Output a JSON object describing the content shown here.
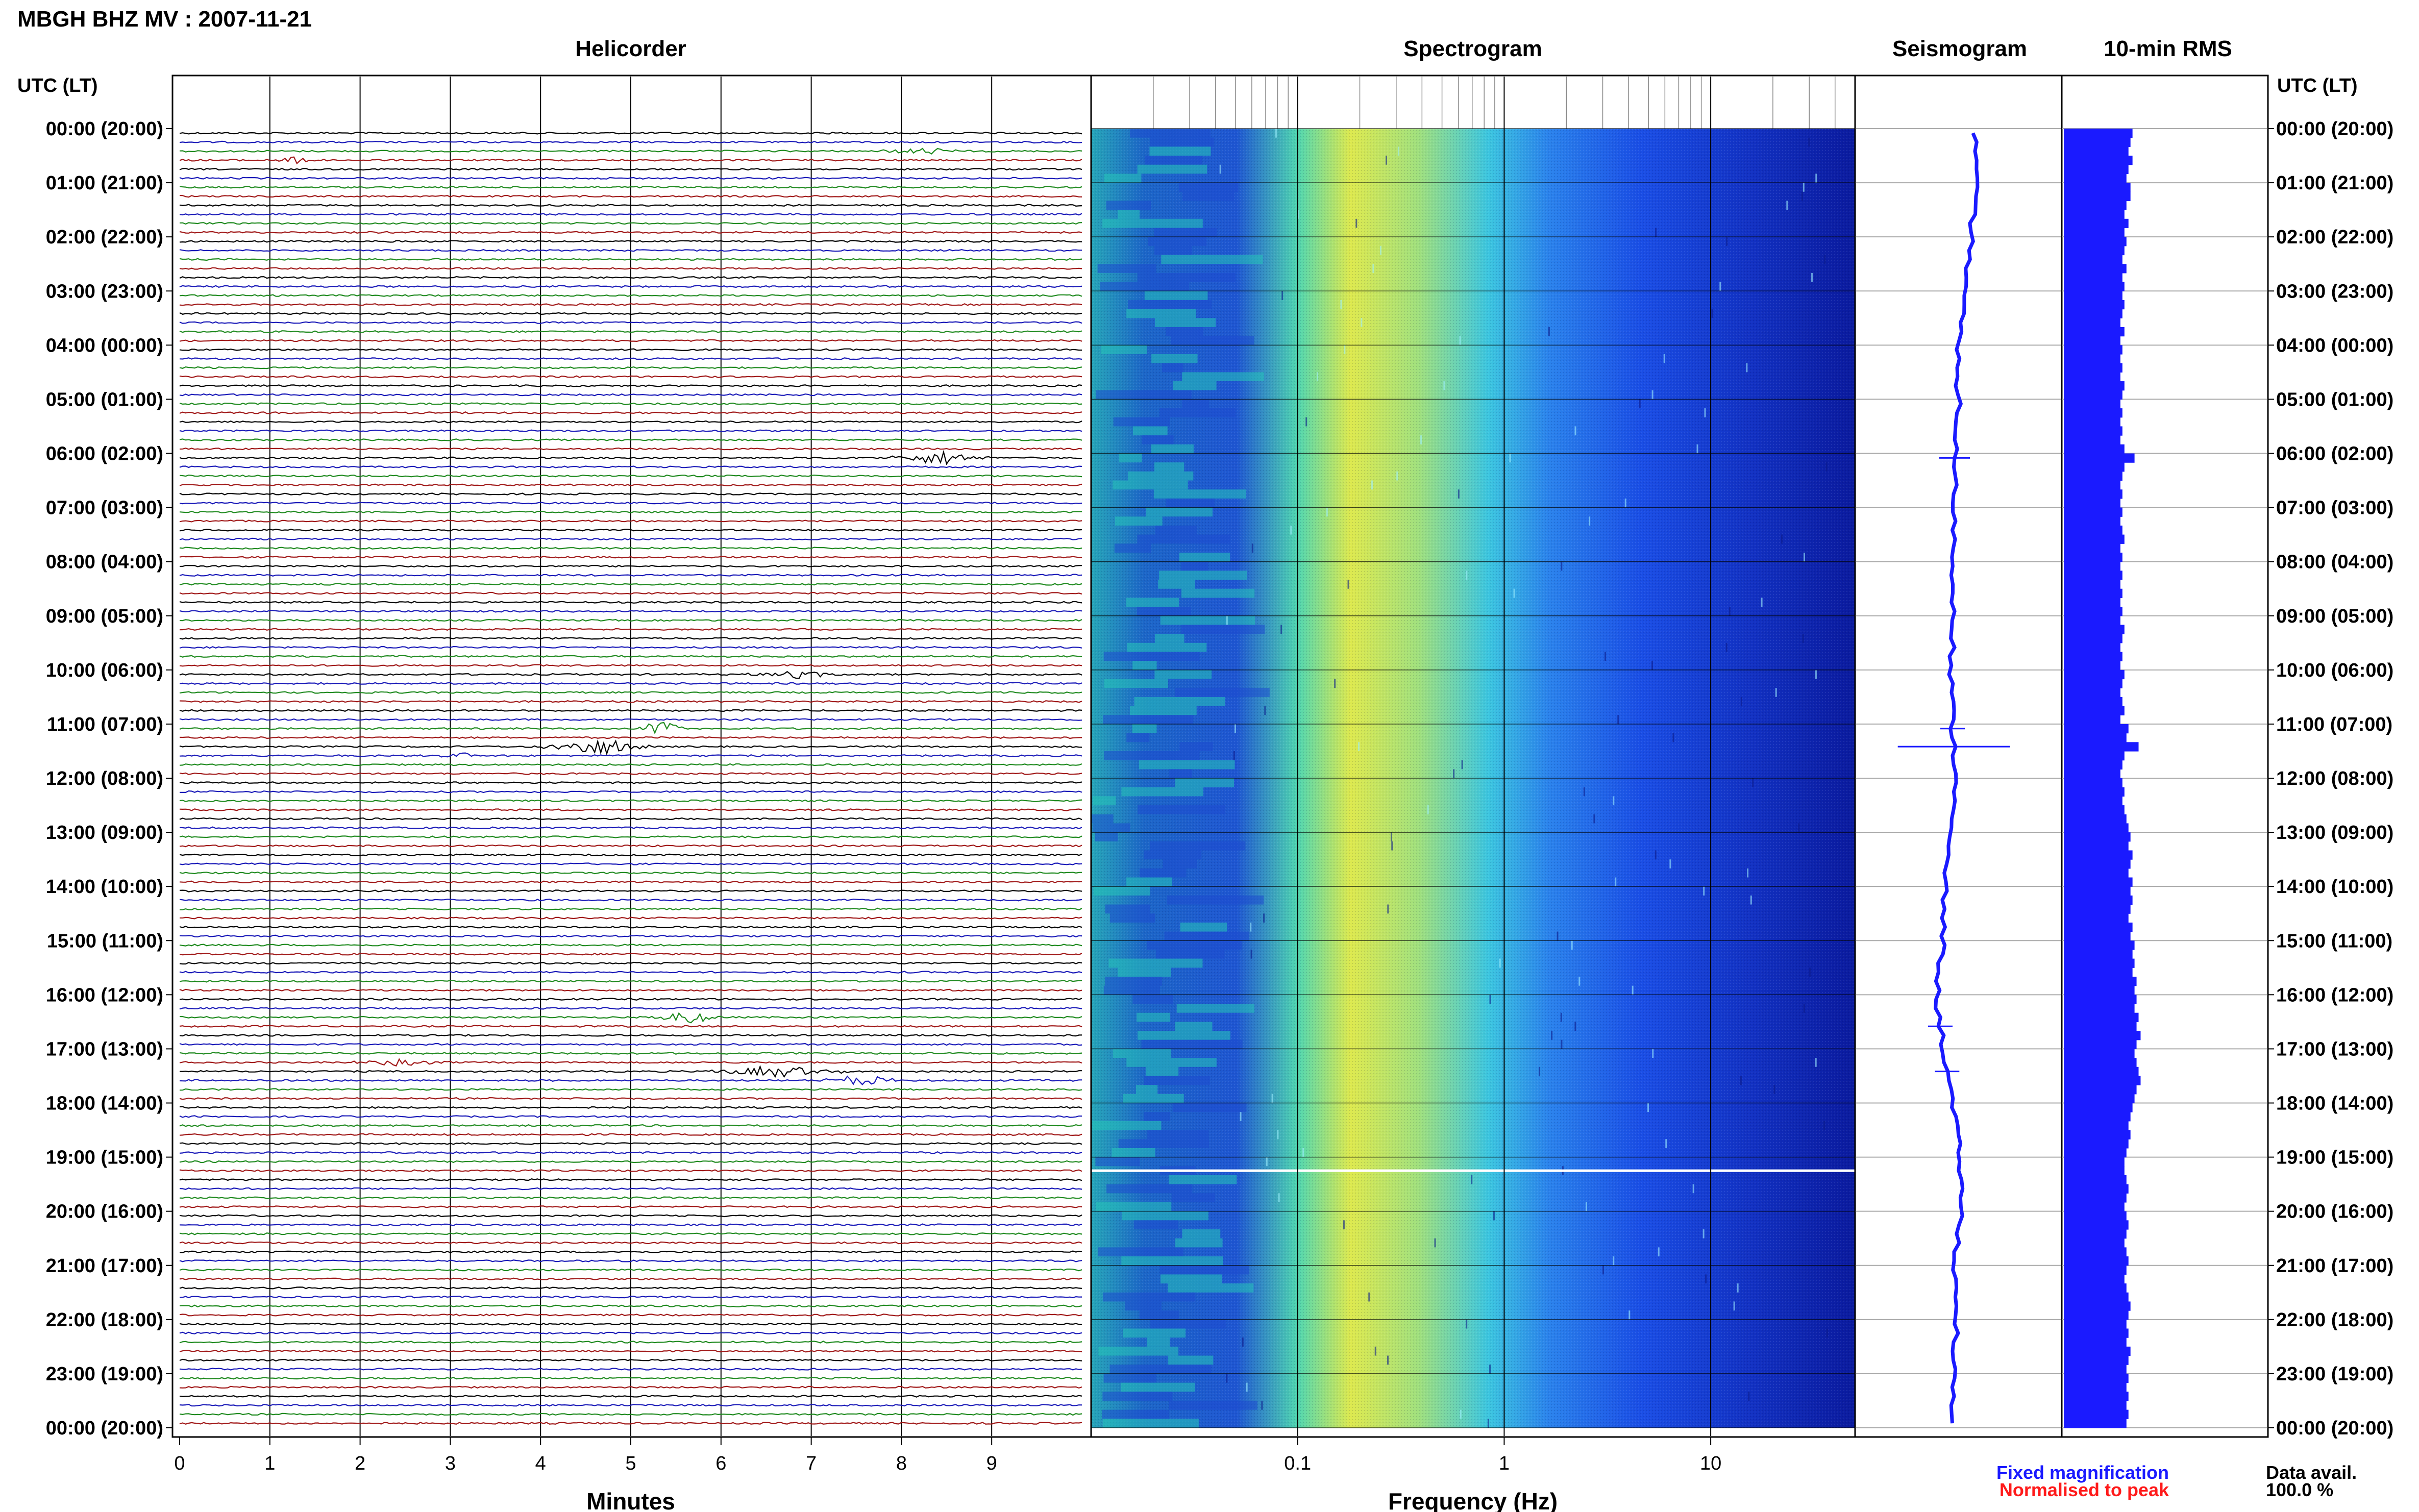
{
  "page": {
    "title": "MBGH BHZ MV : 2007-11-21",
    "left_axis_header": "UTC (LT)",
    "right_axis_header": "UTC (LT)"
  },
  "panels": {
    "helicorder": "Helicorder",
    "spectrogram": "Spectrogram",
    "seismogram": "Seismogram",
    "rms": "10-min RMS"
  },
  "legend": {
    "fixed": "Fixed magnification",
    "normalised": "Normalised to peak",
    "fixed_color": "#1a1aff",
    "normalised_color": "#ff1a1a",
    "data_avail_label": "Data avail.",
    "data_avail_value": "100.0 %"
  },
  "colors": {
    "trace_cycle": [
      "#000000",
      "#1a1ab8",
      "#1f8a1f",
      "#a01818"
    ],
    "rms_bar": "#1a1aff",
    "seismogram": "#1a1aff",
    "spectrogram_low": "#0a1a9e",
    "spectrogram_high": "#e6f04a"
  },
  "chart_data": [
    {
      "type": "line",
      "name": "helicorder",
      "title": "Helicorder",
      "xlabel": "Minutes",
      "x_ticks": [
        "0",
        "1",
        "2",
        "3",
        "4",
        "5",
        "6",
        "7",
        "8",
        "9"
      ],
      "xlim": [
        0,
        10
      ],
      "y_ticks": [
        "00:00 (20:00)",
        "01:00 (21:00)",
        "02:00 (22:00)",
        "03:00 (23:00)",
        "04:00 (00:00)",
        "05:00 (01:00)",
        "06:00 (02:00)",
        "07:00 (03:00)",
        "08:00 (04:00)",
        "09:00 (05:00)",
        "10:00 (06:00)",
        "11:00 (07:00)",
        "12:00 (08:00)",
        "13:00 (09:00)",
        "14:00 (10:00)",
        "15:00 (11:00)",
        "16:00 (12:00)",
        "17:00 (13:00)",
        "18:00 (14:00)",
        "19:00 (15:00)",
        "20:00 (16:00)",
        "21:00 (17:00)",
        "22:00 (18:00)",
        "23:00 (19:00)",
        "00:00 (20:00)"
      ],
      "lines_per_hour": 6,
      "total_lines": 144,
      "events": [
        {
          "line": 3,
          "start_min": 1.05,
          "end_min": 1.6,
          "amp": 1.2
        },
        {
          "line": 2,
          "start_min": 7.8,
          "end_min": 8.7,
          "amp": 1.0
        },
        {
          "line": 36,
          "start_min": 7.9,
          "end_min": 9.0,
          "amp": 2.0
        },
        {
          "line": 60,
          "start_min": 6.2,
          "end_min": 7.4,
          "amp": 1.0
        },
        {
          "line": 66,
          "start_min": 5.1,
          "end_min": 5.6,
          "amp": 3.0
        },
        {
          "line": 68,
          "start_min": 4.0,
          "end_min": 5.2,
          "amp": 2.6
        },
        {
          "line": 69,
          "start_min": 2.9,
          "end_min": 3.3,
          "amp": 1.0
        },
        {
          "line": 98,
          "start_min": 5.2,
          "end_min": 6.0,
          "amp": 2.0
        },
        {
          "line": 103,
          "start_min": 1.8,
          "end_min": 3.0,
          "amp": 0.9
        },
        {
          "line": 104,
          "start_min": 5.8,
          "end_min": 7.4,
          "amp": 1.6
        },
        {
          "line": 105,
          "start_min": 7.1,
          "end_min": 8.0,
          "amp": 1.5
        }
      ]
    },
    {
      "type": "heatmap",
      "name": "spectrogram",
      "title": "Spectrogram",
      "xlabel": "Frequency (Hz)",
      "x_scale": "log",
      "xlim": [
        0.01,
        50
      ],
      "x_ticks": [
        "0.1",
        "1",
        "10"
      ],
      "x_tick_values": [
        0.1,
        1,
        10
      ],
      "peak_frequency_hz": 0.25,
      "gap_line": 115
    },
    {
      "type": "line",
      "name": "seismogram",
      "title": "Seismogram",
      "hourly_offset": [
        0.05,
        0.05,
        0.03,
        0.0,
        -0.04,
        -0.03,
        -0.05,
        -0.05,
        -0.06,
        -0.05,
        -0.07,
        -0.06,
        -0.04,
        -0.08,
        -0.1,
        -0.11,
        -0.14,
        -0.1,
        -0.06,
        -0.02,
        -0.02,
        -0.05,
        -0.04,
        -0.06,
        -0.07
      ],
      "spikes": [
        {
          "line": 36,
          "amp": 0.15
        },
        {
          "line": 66,
          "amp": 0.12
        },
        {
          "line": 68,
          "amp": 0.55
        },
        {
          "line": 99,
          "amp": 0.12
        },
        {
          "line": 104,
          "amp": 0.12
        }
      ]
    },
    {
      "type": "bar",
      "name": "rms",
      "title": "10-min RMS",
      "orientation": "horizontal",
      "values": [
        0.34,
        0.33,
        0.32,
        0.34,
        0.32,
        0.31,
        0.33,
        0.33,
        0.31,
        0.3,
        0.32,
        0.3,
        0.31,
        0.3,
        0.29,
        0.31,
        0.29,
        0.3,
        0.29,
        0.3,
        0.29,
        0.28,
        0.3,
        0.28,
        0.29,
        0.28,
        0.29,
        0.28,
        0.3,
        0.29,
        0.28,
        0.29,
        0.28,
        0.29,
        0.28,
        0.3,
        0.35,
        0.3,
        0.29,
        0.28,
        0.29,
        0.28,
        0.29,
        0.28,
        0.29,
        0.3,
        0.28,
        0.29,
        0.28,
        0.29,
        0.28,
        0.29,
        0.28,
        0.29,
        0.28,
        0.3,
        0.29,
        0.28,
        0.29,
        0.28,
        0.3,
        0.29,
        0.28,
        0.29,
        0.3,
        0.28,
        0.32,
        0.31,
        0.37,
        0.3,
        0.29,
        0.28,
        0.29,
        0.3,
        0.29,
        0.3,
        0.31,
        0.32,
        0.33,
        0.32,
        0.34,
        0.33,
        0.32,
        0.34,
        0.33,
        0.34,
        0.33,
        0.32,
        0.34,
        0.33,
        0.35,
        0.34,
        0.35,
        0.34,
        0.36,
        0.35,
        0.36,
        0.35,
        0.37,
        0.36,
        0.38,
        0.36,
        0.35,
        0.36,
        0.37,
        0.38,
        0.36,
        0.35,
        0.34,
        0.33,
        0.32,
        0.33,
        0.32,
        0.31,
        0.3,
        0.3,
        0.31,
        0.32,
        0.31,
        0.3,
        0.31,
        0.32,
        0.31,
        0.3,
        0.31,
        0.32,
        0.31,
        0.3,
        0.31,
        0.32,
        0.33,
        0.32,
        0.31,
        0.32,
        0.31,
        0.33,
        0.32,
        0.31,
        0.32,
        0.31,
        0.32,
        0.31,
        0.32,
        0.31
      ],
      "xlim": [
        0,
        1
      ]
    }
  ]
}
